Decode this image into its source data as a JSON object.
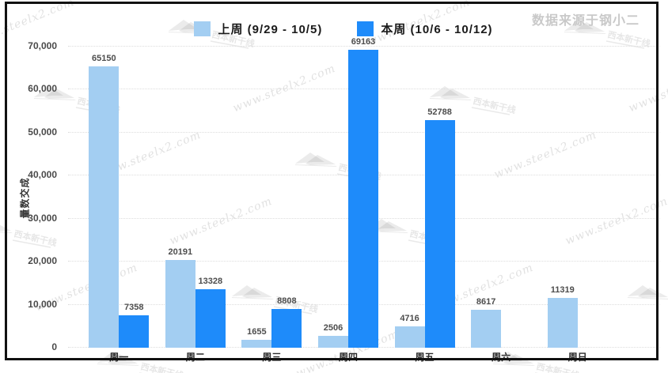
{
  "window": {
    "source_label": "数据来源于钢小二"
  },
  "chart_data": {
    "type": "bar",
    "title": "",
    "categories": [
      "周一",
      "周二",
      "周三",
      "周四",
      "周五",
      "周六",
      "周日"
    ],
    "series": [
      {
        "name": "上周 (9/29 - 10/5)",
        "color": "#a3cef2",
        "values": [
          65150,
          20191,
          1655,
          2506,
          4716,
          8617,
          11319
        ]
      },
      {
        "name": "本周 (10/6 - 10/12)",
        "color": "#1e8bfa",
        "values": [
          7358,
          13328,
          8808,
          69163,
          52788,
          null,
          null
        ]
      }
    ],
    "xlabel": "",
    "ylabel": "成交数量",
    "ylim": [
      0,
      70000
    ],
    "ytick_step": 10000,
    "ytick_labels": [
      "0",
      "10,000",
      "20,000",
      "30,000",
      "40,000",
      "50,000",
      "60,000",
      "70,000"
    ],
    "grid": "dotted-horizontal",
    "legend_position": "top",
    "value_labels": true
  },
  "watermark": {
    "text": "www.steelx2.com",
    "logo_text": "西本新干线"
  }
}
